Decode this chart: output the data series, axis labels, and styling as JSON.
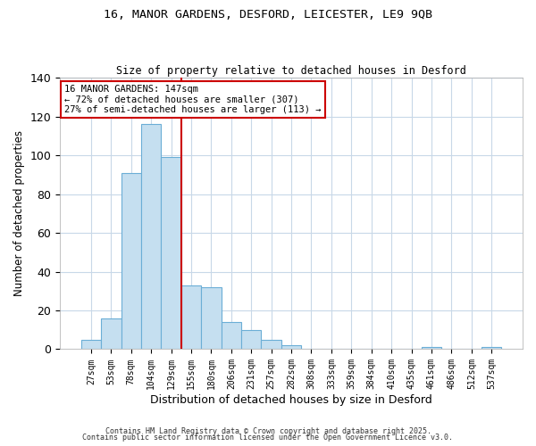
{
  "title1": "16, MANOR GARDENS, DESFORD, LEICESTER, LE9 9QB",
  "title2": "Size of property relative to detached houses in Desford",
  "xlabel": "Distribution of detached houses by size in Desford",
  "ylabel": "Number of detached properties",
  "footer1": "Contains HM Land Registry data © Crown copyright and database right 2025.",
  "footer2": "Contains public sector information licensed under the Open Government Licence v3.0.",
  "bin_labels": [
    "27sqm",
    "53sqm",
    "78sqm",
    "104sqm",
    "129sqm",
    "155sqm",
    "180sqm",
    "206sqm",
    "231sqm",
    "257sqm",
    "282sqm",
    "308sqm",
    "333sqm",
    "359sqm",
    "384sqm",
    "410sqm",
    "435sqm",
    "461sqm",
    "486sqm",
    "512sqm",
    "537sqm"
  ],
  "bar_values": [
    5,
    16,
    91,
    116,
    99,
    33,
    32,
    14,
    10,
    5,
    2,
    0,
    0,
    0,
    0,
    0,
    0,
    1,
    0,
    0,
    1
  ],
  "bar_color": "#c5dff0",
  "bar_edge_color": "#6baed6",
  "vline_color": "#cc0000",
  "annotation_line1": "16 MANOR GARDENS: 147sqm",
  "annotation_line2": "← 72% of detached houses are smaller (307)",
  "annotation_line3": "27% of semi-detached houses are larger (113) →",
  "annotation_box_color": "#ffffff",
  "annotation_box_edge_color": "#cc0000",
  "ylim": [
    0,
    140
  ],
  "yticks": [
    0,
    20,
    40,
    60,
    80,
    100,
    120,
    140
  ],
  "background_color": "#ffffff",
  "grid_color": "#c8d8e8",
  "title1_fontsize": 9.5,
  "title2_fontsize": 8.5
}
